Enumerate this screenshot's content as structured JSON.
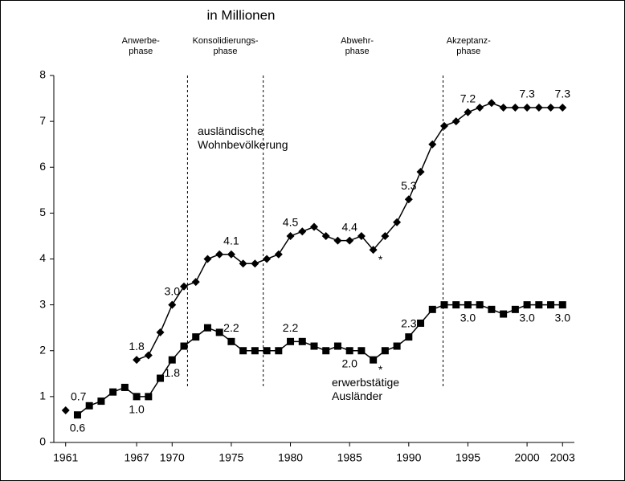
{
  "chart_data": {
    "type": "line",
    "title": "in Millionen",
    "x": [
      1961,
      1962,
      1963,
      1964,
      1965,
      1966,
      1967,
      1968,
      1969,
      1970,
      1971,
      1972,
      1973,
      1974,
      1975,
      1976,
      1977,
      1978,
      1979,
      1980,
      1981,
      1982,
      1983,
      1984,
      1985,
      1986,
      1987,
      1988,
      1989,
      1990,
      1991,
      1992,
      1993,
      1994,
      1995,
      1996,
      1997,
      1998,
      1999,
      2000,
      2001,
      2002,
      2003
    ],
    "series": [
      {
        "name": "ausländische Wohnbevölkerung",
        "color": "#000000",
        "marker": "diamond",
        "values": [
          0.7,
          null,
          null,
          null,
          null,
          null,
          1.8,
          1.9,
          2.4,
          3.0,
          3.4,
          3.5,
          4.0,
          4.1,
          4.1,
          3.9,
          3.9,
          4.0,
          4.1,
          4.5,
          4.6,
          4.7,
          4.5,
          4.4,
          4.4,
          4.5,
          4.2,
          4.5,
          4.8,
          5.3,
          5.9,
          6.5,
          6.9,
          7.0,
          7.2,
          7.3,
          7.4,
          7.3,
          7.3,
          7.3,
          7.3,
          7.3,
          7.3
        ],
        "value_labels": [
          "0.7",
          null,
          null,
          null,
          null,
          null,
          "1.8",
          null,
          null,
          "3.0",
          null,
          null,
          null,
          null,
          "4.1",
          null,
          null,
          null,
          null,
          "4.5",
          null,
          null,
          null,
          null,
          "4.4",
          null,
          null,
          null,
          null,
          "5.3",
          null,
          null,
          null,
          null,
          "7.2",
          null,
          null,
          null,
          null,
          "7.3",
          null,
          null,
          "7.3"
        ]
      },
      {
        "name": "erwerbstätige Ausländer",
        "color": "#000000",
        "marker": "square",
        "values": [
          null,
          0.6,
          0.8,
          0.9,
          1.1,
          1.2,
          1.0,
          1.0,
          1.4,
          1.8,
          2.1,
          2.3,
          2.5,
          2.4,
          2.2,
          2.0,
          2.0,
          2.0,
          2.0,
          2.2,
          2.2,
          2.1,
          2.0,
          2.1,
          2.0,
          2.0,
          1.8,
          2.0,
          2.1,
          2.3,
          2.6,
          2.9,
          3.0,
          3.0,
          3.0,
          3.0,
          2.9,
          2.8,
          2.9,
          3.0,
          3.0,
          3.0,
          3.0
        ],
        "value_labels": [
          null,
          "0.6",
          null,
          null,
          null,
          null,
          "1.0",
          null,
          null,
          "1.8",
          null,
          null,
          null,
          null,
          "2.2",
          null,
          null,
          null,
          null,
          "2.2",
          null,
          null,
          null,
          null,
          "2.0",
          null,
          null,
          null,
          null,
          "2.3",
          null,
          null,
          null,
          null,
          "3.0",
          null,
          null,
          null,
          null,
          "3.0",
          null,
          null,
          "3.0"
        ]
      }
    ],
    "xlim": [
      1960,
      2004
    ],
    "xticks": [
      1961,
      1967,
      1970,
      1975,
      1980,
      1985,
      1990,
      1995,
      2000,
      2003
    ],
    "ylim": [
      0,
      8
    ],
    "yticks": [
      0,
      1,
      2,
      3,
      4,
      5,
      6,
      7,
      8
    ],
    "phases": [
      "Anwerbe-phase",
      "Konsolidierungs-phase",
      "Abwehr-phase",
      "Akzeptanz-phase"
    ],
    "phase_boundaries": [
      1971.3,
      1977.7,
      1992.9
    ],
    "annotations": [
      {
        "text": "*",
        "x": 1987,
        "y": 4.2
      },
      {
        "text": "*",
        "x": 1987,
        "y": 1.8
      }
    ]
  }
}
